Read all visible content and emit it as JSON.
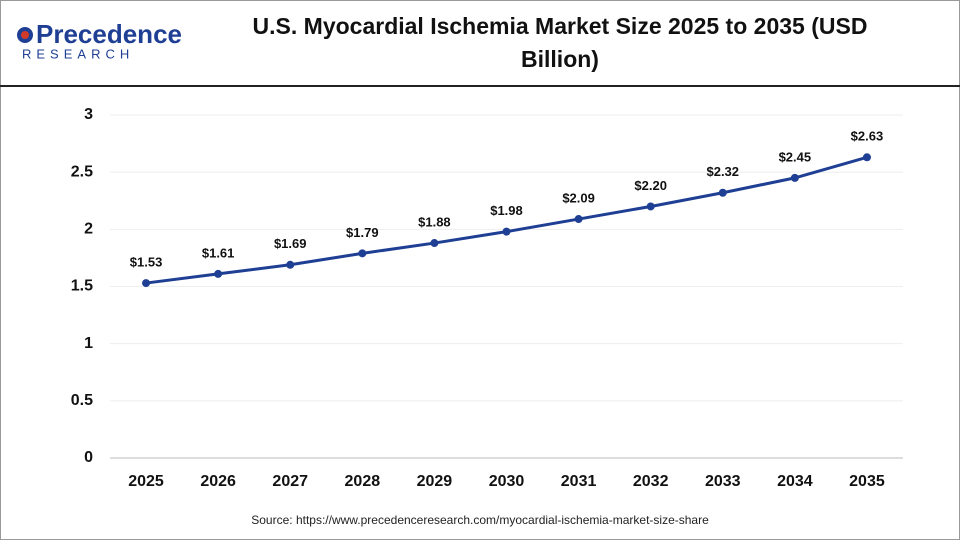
{
  "logo": {
    "name": "Precedence",
    "tagline": "RESEARCH"
  },
  "chart_data": {
    "type": "line",
    "title": "U.S. Myocardial Ischemia Market Size 2025 to 2035 (USD Billion)",
    "categories": [
      "2025",
      "2026",
      "2027",
      "2028",
      "2029",
      "2030",
      "2031",
      "2032",
      "2033",
      "2034",
      "2035"
    ],
    "series": [
      {
        "name": "U.S. Myocardial Ischemia Market Size",
        "color": "#1f3f94",
        "values": [
          1.53,
          1.61,
          1.69,
          1.79,
          1.88,
          1.98,
          2.09,
          2.2,
          2.32,
          2.45,
          2.63
        ],
        "value_labels": [
          "$1.53",
          "$1.61",
          "$1.69",
          "$1.79",
          "$1.88",
          "$1.98",
          "$2.09",
          "$2.20",
          "$2.32",
          "$2.45",
          "$2.63"
        ]
      }
    ],
    "ylim": [
      0,
      3
    ],
    "yticks": [
      0,
      0.5,
      1,
      1.5,
      2,
      2.5,
      3
    ],
    "grid": true,
    "source": "Source: https://www.precedenceresearch.com/myocardial-ischemia-market-size-share"
  }
}
